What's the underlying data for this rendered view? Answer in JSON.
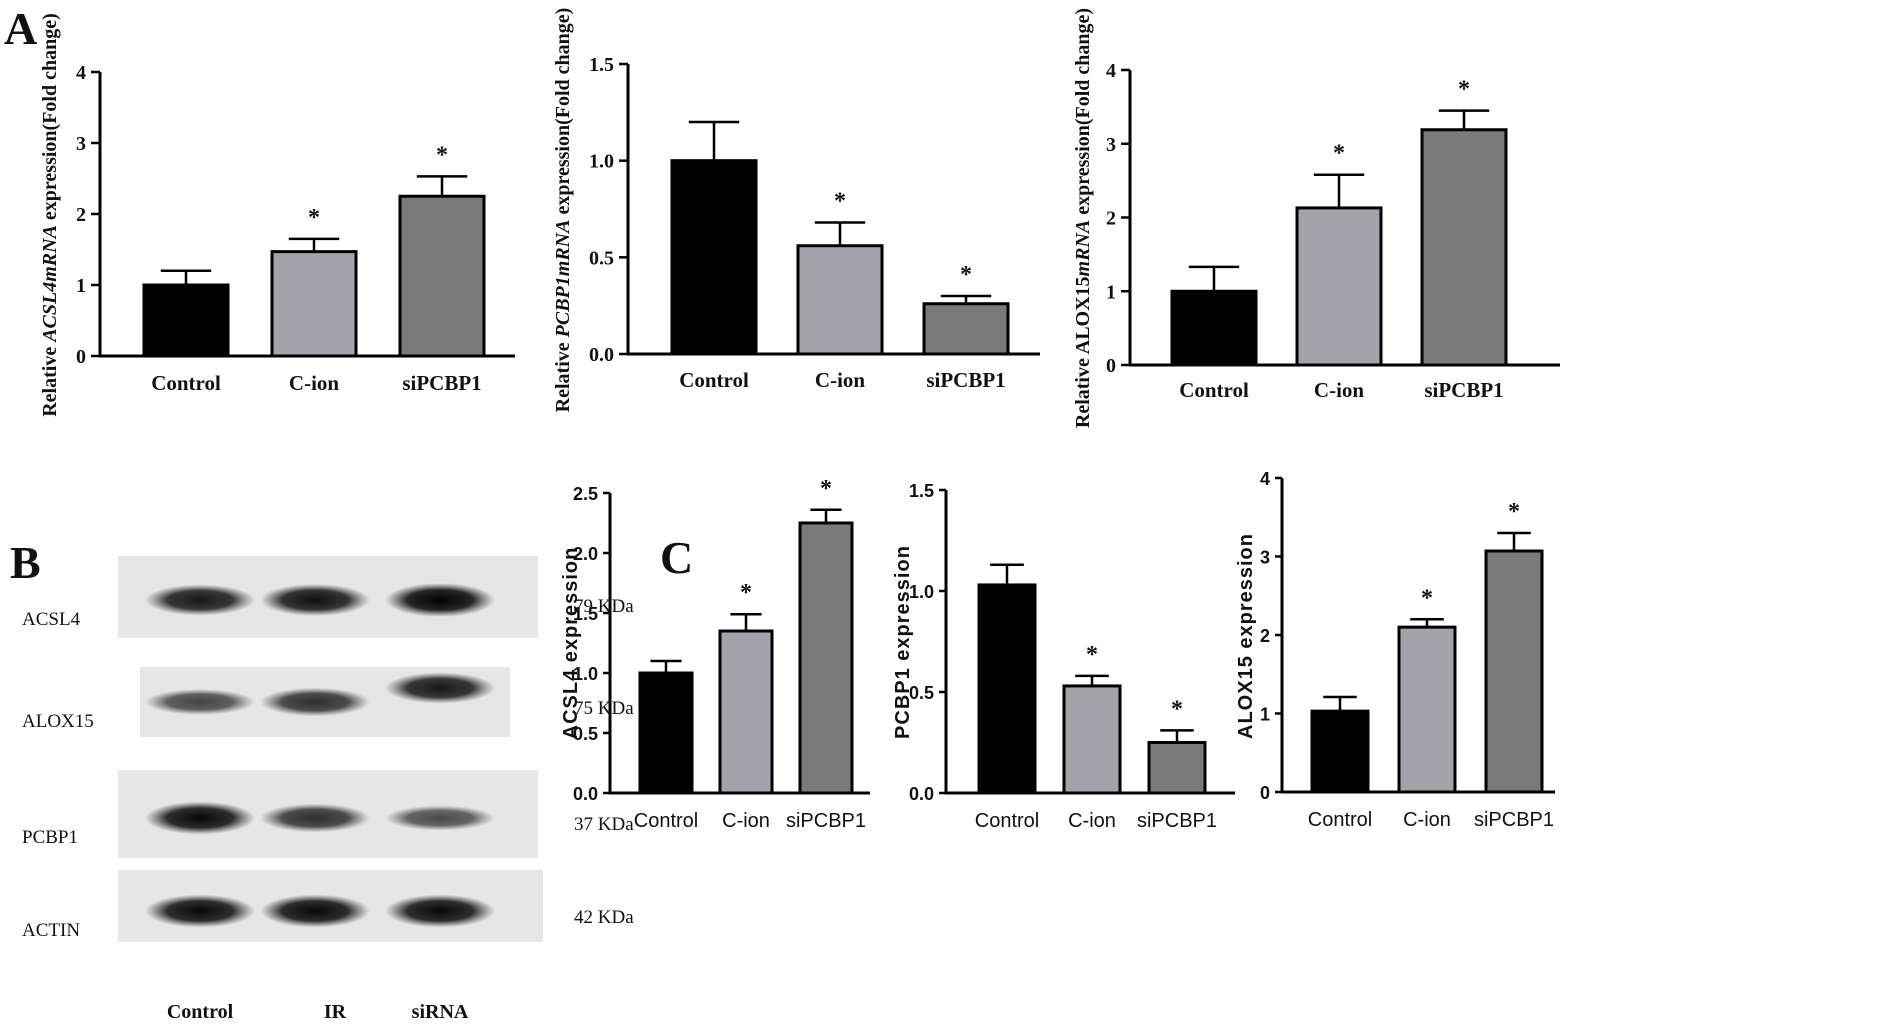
{
  "panels": {
    "A": "A",
    "B": "B",
    "C": "C"
  },
  "colors": {
    "Control": "#000000",
    "C-ion": "#a3a3a9",
    "siPCBP1": "#7a7a7a",
    "axis": "#000000"
  },
  "chart_data": [
    {
      "id": "A1",
      "type": "bar",
      "categories": [
        "Control",
        "C-ion",
        "siPCBP1"
      ],
      "values": [
        1.0,
        1.47,
        2.25
      ],
      "errors": [
        0.2,
        0.18,
        0.28
      ],
      "significance": [
        "",
        "*",
        "*"
      ],
      "ylabel": {
        "pre": "Relative ",
        "gene": "ACSL4mRNA",
        "post": " expression(Fold change)"
      },
      "ylim": [
        0,
        4
      ],
      "yticks": [
        "0",
        "1",
        "2",
        "3",
        "4"
      ],
      "yticks_values": [
        0,
        1,
        2,
        3,
        4
      ]
    },
    {
      "id": "A2",
      "type": "bar",
      "categories": [
        "Control",
        "C-ion",
        "siPCBP1"
      ],
      "values": [
        1.0,
        0.56,
        0.26
      ],
      "errors": [
        0.2,
        0.12,
        0.04
      ],
      "significance": [
        "",
        "*",
        "*"
      ],
      "ylabel": {
        "pre": "Relative ",
        "gene": "PCBP1mRNA",
        "post": " expression(Fold change)"
      },
      "ylim": [
        0,
        1.5
      ],
      "yticks": [
        "0.0",
        "0.5",
        "1.0",
        "1.5"
      ],
      "yticks_values": [
        0,
        0.5,
        1.0,
        1.5
      ]
    },
    {
      "id": "A3",
      "type": "bar",
      "categories": [
        "Control",
        "C-ion",
        "siPCBP1"
      ],
      "values": [
        1.0,
        2.13,
        3.19
      ],
      "errors": [
        0.33,
        0.45,
        0.26
      ],
      "significance": [
        "",
        "*",
        "*"
      ],
      "ylabel": {
        "pre": "Relative ALOX15",
        "gene": "mRNA",
        "post": " expression(Fold change)"
      },
      "ylim": [
        0,
        4
      ],
      "yticks": [
        "0",
        "1",
        "2",
        "3",
        "4"
      ],
      "yticks_values": [
        0,
        1,
        2,
        3,
        4
      ]
    },
    {
      "id": "C1",
      "type": "bar",
      "categories": [
        "Control",
        "C-ion",
        "siPCBP1"
      ],
      "values": [
        1.0,
        1.35,
        2.25
      ],
      "errors": [
        0.1,
        0.14,
        0.11
      ],
      "significance": [
        "",
        "*",
        "*"
      ],
      "ylabel": "ACSL4 expression",
      "ylim": [
        0,
        2.5
      ],
      "yticks": [
        "0.0",
        "0.5",
        "1.0",
        "1.5",
        "2.0",
        "2.5"
      ],
      "yticks_values": [
        0,
        0.5,
        1.0,
        1.5,
        2.0,
        2.5
      ]
    },
    {
      "id": "C2",
      "type": "bar",
      "categories": [
        "Control",
        "C-ion",
        "siPCBP1"
      ],
      "values": [
        1.03,
        0.53,
        0.25
      ],
      "errors": [
        0.1,
        0.05,
        0.06
      ],
      "significance": [
        "",
        "*",
        "*"
      ],
      "ylabel": "PCBP1 expression",
      "ylim": [
        0,
        1.5
      ],
      "yticks": [
        "0.0",
        "0.5",
        "1.0",
        "1.5"
      ],
      "yticks_values": [
        0,
        0.5,
        1.0,
        1.5
      ]
    },
    {
      "id": "C3",
      "type": "bar",
      "categories": [
        "Control",
        "C-ion",
        "siPCBP1"
      ],
      "values": [
        1.03,
        2.1,
        3.07
      ],
      "errors": [
        0.18,
        0.1,
        0.23
      ],
      "significance": [
        "",
        "*",
        "*"
      ],
      "ylabel": "ALOX15 expression",
      "ylim": [
        0,
        4
      ],
      "yticks": [
        "0",
        "1",
        "2",
        "3",
        "4"
      ],
      "yticks_values": [
        0,
        1,
        2,
        3,
        4
      ]
    }
  ],
  "blot": {
    "rows": [
      {
        "label": "ACSL4",
        "kda": "79 KDa",
        "intensity": [
          0.85,
          0.9,
          1.0
        ]
      },
      {
        "label": "ALOX15",
        "kda": "75 KDa",
        "intensity": [
          0.55,
          0.7,
          0.85
        ]
      },
      {
        "label": "PCBP1",
        "kda": "37 KDa",
        "intensity": [
          0.95,
          0.7,
          0.5
        ]
      },
      {
        "label": "ACTIN",
        "kda": "42 KDa",
        "intensity": [
          0.95,
          0.95,
          0.95
        ]
      }
    ],
    "lanes": [
      "Control",
      "IR",
      "siRNA"
    ]
  }
}
